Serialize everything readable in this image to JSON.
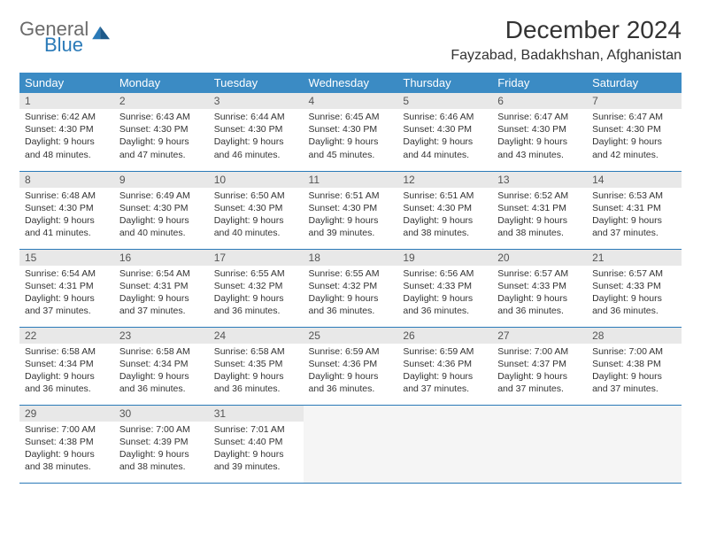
{
  "logo": {
    "general": "General",
    "blue": "Blue"
  },
  "title": "December 2024",
  "location": "Fayzabad, Badakhshan, Afghanistan",
  "colors": {
    "header_bg": "#3b8bc4",
    "header_text": "#ffffff",
    "daynum_bg": "#e8e8e8",
    "border": "#2a7ab8",
    "accent": "#2a7ab8",
    "logo_gray": "#6b6b6b"
  },
  "weekdays": [
    "Sunday",
    "Monday",
    "Tuesday",
    "Wednesday",
    "Thursday",
    "Friday",
    "Saturday"
  ],
  "weeks": [
    [
      {
        "n": "1",
        "sr": "6:42 AM",
        "ss": "4:30 PM",
        "dl": "9 hours and 48 minutes."
      },
      {
        "n": "2",
        "sr": "6:43 AM",
        "ss": "4:30 PM",
        "dl": "9 hours and 47 minutes."
      },
      {
        "n": "3",
        "sr": "6:44 AM",
        "ss": "4:30 PM",
        "dl": "9 hours and 46 minutes."
      },
      {
        "n": "4",
        "sr": "6:45 AM",
        "ss": "4:30 PM",
        "dl": "9 hours and 45 minutes."
      },
      {
        "n": "5",
        "sr": "6:46 AM",
        "ss": "4:30 PM",
        "dl": "9 hours and 44 minutes."
      },
      {
        "n": "6",
        "sr": "6:47 AM",
        "ss": "4:30 PM",
        "dl": "9 hours and 43 minutes."
      },
      {
        "n": "7",
        "sr": "6:47 AM",
        "ss": "4:30 PM",
        "dl": "9 hours and 42 minutes."
      }
    ],
    [
      {
        "n": "8",
        "sr": "6:48 AM",
        "ss": "4:30 PM",
        "dl": "9 hours and 41 minutes."
      },
      {
        "n": "9",
        "sr": "6:49 AM",
        "ss": "4:30 PM",
        "dl": "9 hours and 40 minutes."
      },
      {
        "n": "10",
        "sr": "6:50 AM",
        "ss": "4:30 PM",
        "dl": "9 hours and 40 minutes."
      },
      {
        "n": "11",
        "sr": "6:51 AM",
        "ss": "4:30 PM",
        "dl": "9 hours and 39 minutes."
      },
      {
        "n": "12",
        "sr": "6:51 AM",
        "ss": "4:30 PM",
        "dl": "9 hours and 38 minutes."
      },
      {
        "n": "13",
        "sr": "6:52 AM",
        "ss": "4:31 PM",
        "dl": "9 hours and 38 minutes."
      },
      {
        "n": "14",
        "sr": "6:53 AM",
        "ss": "4:31 PM",
        "dl": "9 hours and 37 minutes."
      }
    ],
    [
      {
        "n": "15",
        "sr": "6:54 AM",
        "ss": "4:31 PM",
        "dl": "9 hours and 37 minutes."
      },
      {
        "n": "16",
        "sr": "6:54 AM",
        "ss": "4:31 PM",
        "dl": "9 hours and 37 minutes."
      },
      {
        "n": "17",
        "sr": "6:55 AM",
        "ss": "4:32 PM",
        "dl": "9 hours and 36 minutes."
      },
      {
        "n": "18",
        "sr": "6:55 AM",
        "ss": "4:32 PM",
        "dl": "9 hours and 36 minutes."
      },
      {
        "n": "19",
        "sr": "6:56 AM",
        "ss": "4:33 PM",
        "dl": "9 hours and 36 minutes."
      },
      {
        "n": "20",
        "sr": "6:57 AM",
        "ss": "4:33 PM",
        "dl": "9 hours and 36 minutes."
      },
      {
        "n": "21",
        "sr": "6:57 AM",
        "ss": "4:33 PM",
        "dl": "9 hours and 36 minutes."
      }
    ],
    [
      {
        "n": "22",
        "sr": "6:58 AM",
        "ss": "4:34 PM",
        "dl": "9 hours and 36 minutes."
      },
      {
        "n": "23",
        "sr": "6:58 AM",
        "ss": "4:34 PM",
        "dl": "9 hours and 36 minutes."
      },
      {
        "n": "24",
        "sr": "6:58 AM",
        "ss": "4:35 PM",
        "dl": "9 hours and 36 minutes."
      },
      {
        "n": "25",
        "sr": "6:59 AM",
        "ss": "4:36 PM",
        "dl": "9 hours and 36 minutes."
      },
      {
        "n": "26",
        "sr": "6:59 AM",
        "ss": "4:36 PM",
        "dl": "9 hours and 37 minutes."
      },
      {
        "n": "27",
        "sr": "7:00 AM",
        "ss": "4:37 PM",
        "dl": "9 hours and 37 minutes."
      },
      {
        "n": "28",
        "sr": "7:00 AM",
        "ss": "4:38 PM",
        "dl": "9 hours and 37 minutes."
      }
    ],
    [
      {
        "n": "29",
        "sr": "7:00 AM",
        "ss": "4:38 PM",
        "dl": "9 hours and 38 minutes."
      },
      {
        "n": "30",
        "sr": "7:00 AM",
        "ss": "4:39 PM",
        "dl": "9 hours and 38 minutes."
      },
      {
        "n": "31",
        "sr": "7:01 AM",
        "ss": "4:40 PM",
        "dl": "9 hours and 39 minutes."
      },
      null,
      null,
      null,
      null
    ]
  ],
  "labels": {
    "sunrise": "Sunrise:",
    "sunset": "Sunset:",
    "daylight": "Daylight:"
  }
}
